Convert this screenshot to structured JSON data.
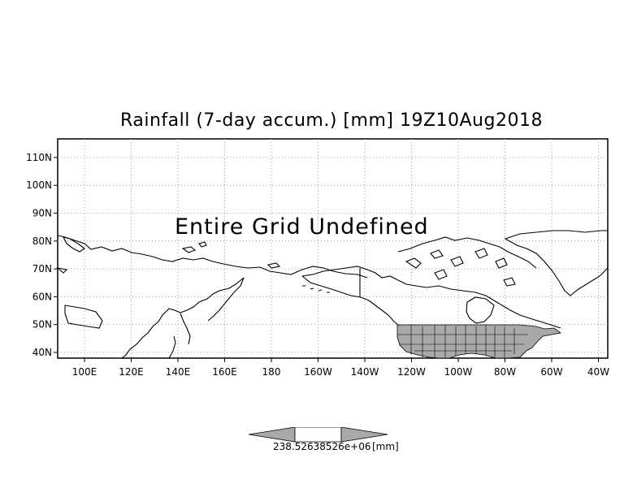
{
  "title": "Rainfall (7-day accum.) [mm] 19Z10Aug2018",
  "overlay_message": "Entire Grid Undefined",
  "lat_ticks": [
    "110N",
    "100N",
    "90N",
    "80N",
    "70N",
    "60N",
    "50N",
    "40N"
  ],
  "lon_ticks": [
    "100E",
    "120E",
    "140E",
    "160E",
    "180",
    "160W",
    "140W",
    "120W",
    "100W",
    "80W",
    "60W",
    "40W"
  ],
  "legend": {
    "left_value": "238.52638526e+06",
    "unit": "[mm]",
    "fill_color": "#a9a9a9",
    "center_color": "#ffffff"
  },
  "map": {
    "projection_extent": {
      "lon_min": 90,
      "lon_max": 322,
      "lat_min": 37,
      "lat_max": 114
    },
    "gridline_style": "dotted",
    "coastline_color": "#000000",
    "shaded_region": {
      "name": "contiguous United States and southern Canada",
      "color": "#a9a9a9"
    }
  }
}
